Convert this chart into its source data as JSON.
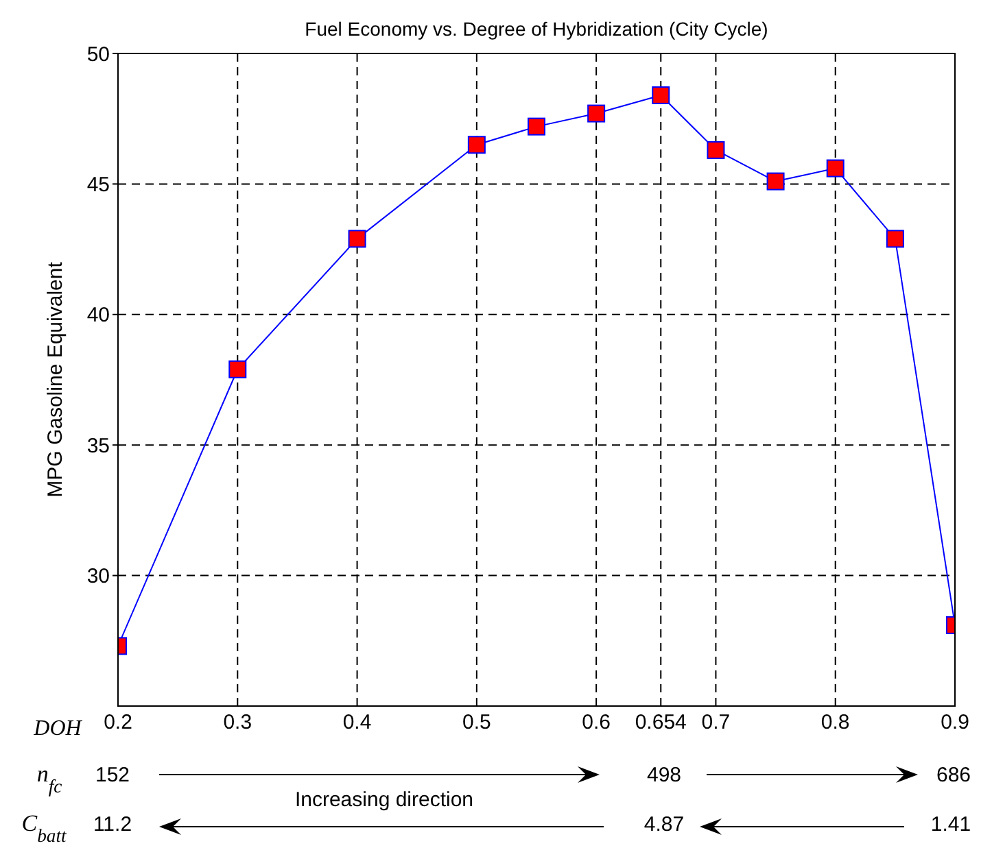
{
  "chart_data": {
    "type": "line",
    "title": "Fuel Economy vs. Degree of Hybridization (City Cycle)",
    "xlabel": "DOH",
    "ylabel": "MPG  Gasoline Equivalent",
    "x": [
      0.2,
      0.3,
      0.4,
      0.5,
      0.55,
      0.6,
      0.654,
      0.7,
      0.75,
      0.8,
      0.85,
      0.9
    ],
    "series": [
      {
        "color": "#0000ff",
        "colors": [
          "#ff0000",
          "#ff0000",
          "#ff0000",
          "#ff0000",
          "#ff0000",
          "#ff0000",
          "#ff0000",
          "#ff0000",
          "#ff0000",
          "#ff0000",
          "#ff0000",
          "#ff0000"
        ],
        "values": [
          27.3,
          37.9,
          42.9,
          46.5,
          47.2,
          47.7,
          48.4,
          46.3,
          45.1,
          45.6,
          42.9,
          28.1
        ]
      }
    ],
    "xlim": [
      0.2,
      0.9
    ],
    "xticks": [
      0.2,
      0.3,
      0.4,
      0.5,
      0.6,
      0.654,
      0.7,
      0.8,
      0.9
    ],
    "ylim": [
      25,
      50
    ],
    "yticks": [
      30,
      35,
      40,
      45,
      50
    ],
    "grid": true,
    "marker": "square",
    "line_style": "solid",
    "annotations": [
      "n$_{fc}$",
      "152",
      "498",
      "686",
      "Increasing direction",
      "C$_{batt}$",
      "11.2",
      "4.87",
      "1.41"
    ]
  }
}
